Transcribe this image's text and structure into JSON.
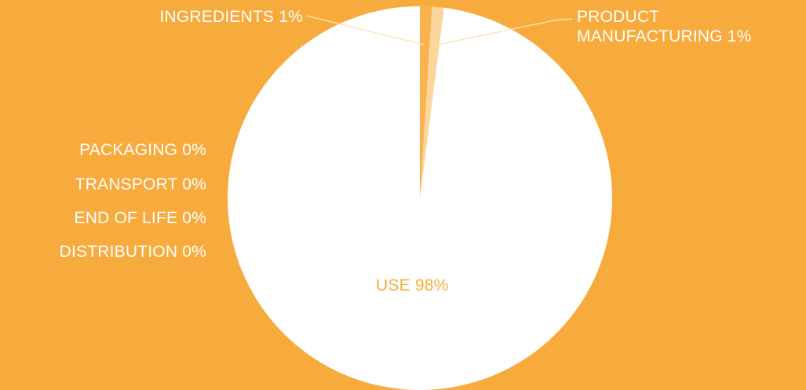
{
  "colors": {
    "background": "#f8ab3d",
    "use_slice": "#ffffff",
    "small_slice_a": "#f9b24f",
    "small_slice_b": "#fcd59b",
    "leader_line": "#fde3b8",
    "use_label": "#f8ab3d"
  },
  "chart_data": {
    "type": "pie",
    "title": "",
    "slices": [
      {
        "name": "INGREDIENTS",
        "label": "INGREDIENTS 1%",
        "value": 1
      },
      {
        "name": "PRODUCT MANUFACTURING",
        "label_lines": [
          "PRODUCT",
          "MANUFACTURING 1%"
        ],
        "value": 1
      },
      {
        "name": "PACKAGING",
        "label": "PACKAGING 0%",
        "value": 0
      },
      {
        "name": "TRANSPORT",
        "label": "TRANSPORT 0%",
        "value": 0
      },
      {
        "name": "END OF LIFE",
        "label": "END OF LIFE 0%",
        "value": 0
      },
      {
        "name": "DISTRIBUTION",
        "label": "DISTRIBUTION 0%",
        "value": 0
      },
      {
        "name": "USE",
        "label": "USE 98%",
        "value": 98
      }
    ]
  }
}
